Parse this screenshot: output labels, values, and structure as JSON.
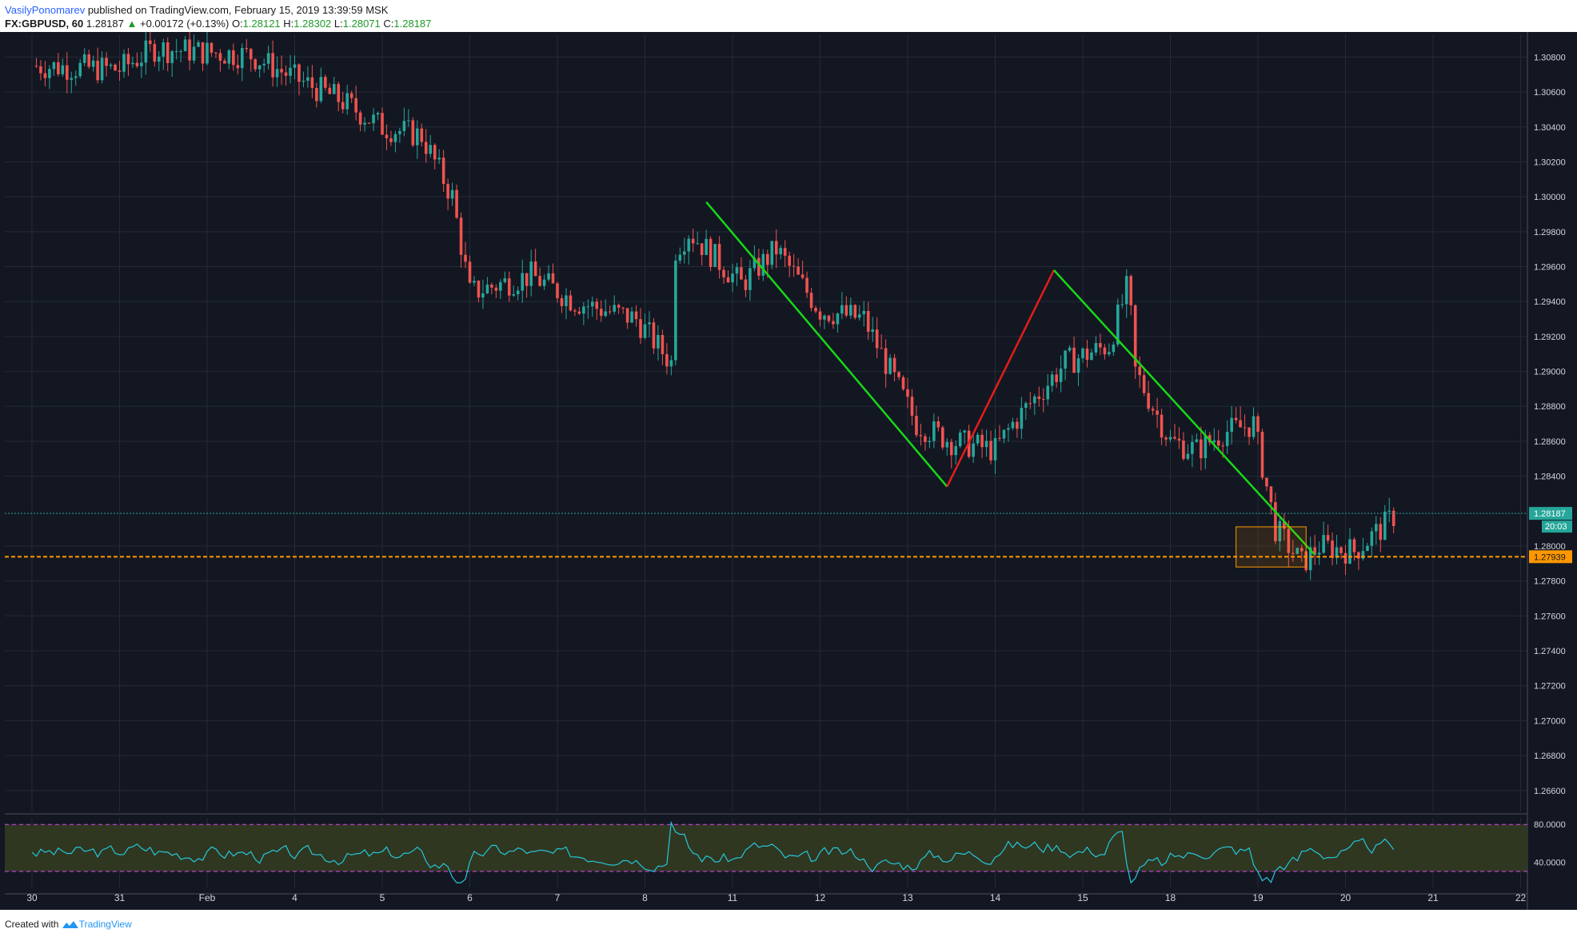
{
  "header": {
    "author": "VasilyPonomarev",
    "published_text": "published on TradingView.com, February 15, 2019 13:39:59 MSK",
    "symbol": "FX:GBPUSD, 60",
    "last_price": "1.28187",
    "change_arrow": "▲",
    "change_text": "+0.00172 (+0.13%)",
    "o_label": "O:",
    "o_value": "1.28121",
    "h_label": "H:",
    "h_value": "1.28302",
    "l_label": "L:",
    "l_value": "1.28071",
    "c_label": "C:",
    "c_value": "1.28187"
  },
  "chart_data": {
    "type": "candlestick",
    "symbol": "FX:GBPUSD",
    "interval": "60",
    "y_axis": {
      "ticks": [
        "1.30800",
        "1.30600",
        "1.30400",
        "1.30200",
        "1.30000",
        "1.29800",
        "1.29600",
        "1.29400",
        "1.29200",
        "1.29000",
        "1.28800",
        "1.28600",
        "1.28400",
        "1.28000",
        "1.27800",
        "1.27600",
        "1.27400",
        "1.27200",
        "1.27000",
        "1.26800",
        "1.26600"
      ],
      "ylim": [
        1.2648,
        1.3093
      ]
    },
    "x_axis": {
      "labels": [
        "30",
        "31",
        "Feb",
        "4",
        "5",
        "6",
        "7",
        "8",
        "11",
        "12",
        "13",
        "14",
        "15",
        "18",
        "19",
        "20",
        "21",
        "22"
      ]
    },
    "price_path": [
      {
        "x": 0,
        "y": 1.3075
      },
      {
        "x": 1.0,
        "y": 1.3073
      },
      {
        "x": 1.4,
        "y": 1.3085
      },
      {
        "x": 2.5,
        "y": 1.3081
      },
      {
        "x": 3.0,
        "y": 1.3068
      },
      {
        "x": 3.5,
        "y": 1.3056
      },
      {
        "x": 4.0,
        "y": 1.304
      },
      {
        "x": 4.45,
        "y": 1.3035
      },
      {
        "x": 4.8,
        "y": 1.3
      },
      {
        "x": 5.0,
        "y": 1.2945
      },
      {
        "x": 5.7,
        "y": 1.2955
      },
      {
        "x": 6.2,
        "y": 1.294
      },
      {
        "x": 6.9,
        "y": 1.293
      },
      {
        "x": 7.3,
        "y": 1.2905
      },
      {
        "x": 7.35,
        "y": 1.297
      },
      {
        "x": 7.5,
        "y": 1.298
      },
      {
        "x": 8.1,
        "y": 1.295
      },
      {
        "x": 8.5,
        "y": 1.297
      },
      {
        "x": 9.0,
        "y": 1.2935
      },
      {
        "x": 9.5,
        "y": 1.293
      },
      {
        "x": 10.1,
        "y": 1.287
      },
      {
        "x": 10.5,
        "y": 1.286
      },
      {
        "x": 11.0,
        "y": 1.2855
      },
      {
        "x": 11.2,
        "y": 1.287
      },
      {
        "x": 11.8,
        "y": 1.2905
      },
      {
        "x": 12.3,
        "y": 1.2915
      },
      {
        "x": 12.52,
        "y": 1.295
      },
      {
        "x": 12.6,
        "y": 1.29
      },
      {
        "x": 13.0,
        "y": 1.286
      },
      {
        "x": 13.3,
        "y": 1.2855
      },
      {
        "x": 13.6,
        "y": 1.2865
      },
      {
        "x": 13.95,
        "y": 1.287
      },
      {
        "x": 14.2,
        "y": 1.281
      },
      {
        "x": 14.5,
        "y": 1.279
      },
      {
        "x": 14.7,
        "y": 1.28
      },
      {
        "x": 15.1,
        "y": 1.2797
      },
      {
        "x": 15.45,
        "y": 1.2812
      },
      {
        "x": 15.58,
        "y": 1.28187
      }
    ],
    "last_price": {
      "value": 1.28187,
      "label": "1.28187",
      "countdown": "20:03",
      "color": "#26a69a"
    },
    "horizontal_level": {
      "value": 1.27939,
      "label": "1.27939",
      "color": "#ff9800",
      "style": "dashed"
    },
    "drawings": [
      {
        "type": "trend_line",
        "color": "#18d818",
        "from": {
          "x": 7.7,
          "y": 1.2997
        },
        "to": {
          "x": 10.45,
          "y": 1.2834
        }
      },
      {
        "type": "trend_line",
        "color": "#e81b1b",
        "from": {
          "x": 10.45,
          "y": 1.2834
        },
        "to": {
          "x": 11.67,
          "y": 1.2958
        }
      },
      {
        "type": "trend_line",
        "color": "#18d818",
        "from": {
          "x": 11.67,
          "y": 1.2958
        },
        "to": {
          "x": 14.65,
          "y": 1.2795
        }
      },
      {
        "type": "rectangle",
        "color": "#ff9800",
        "from": {
          "x": 13.75,
          "y": 1.2811
        },
        "to": {
          "x": 14.55,
          "y": 1.2788
        }
      }
    ],
    "rsi": {
      "ticks": [
        "80.0000",
        "40.0000"
      ],
      "ylim": [
        13,
        87
      ],
      "upper_band": 80,
      "lower_band": 30,
      "line_color": "#26c6da",
      "band_fill": "#2f3721",
      "band_line_color": "#e040fb"
    }
  },
  "colors": {
    "background": "#131722",
    "grid": "#252a37",
    "up_candle": "#26a69a",
    "down_candle": "#ef5350",
    "axis_text": "#d1d4dc"
  },
  "footer": {
    "created_with": "Created with",
    "brand": "TradingView"
  }
}
